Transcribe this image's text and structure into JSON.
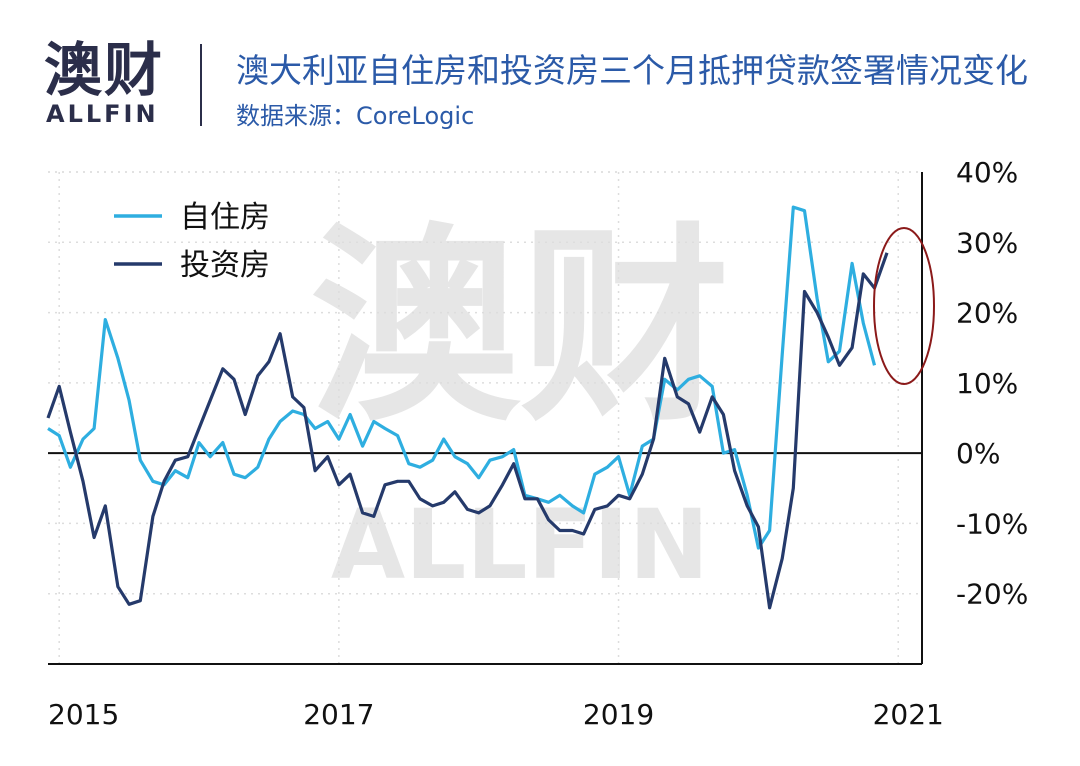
{
  "header": {
    "logo_cn": "澳财",
    "logo_en": "ALLFIN",
    "title": "澳大利亚自住房和投资房三个月抵押贷款签署情况变化",
    "source": "数据来源：CoreLogic"
  },
  "watermark": {
    "cn": "澳财",
    "en": "ALLFIN"
  },
  "colors": {
    "owner": "#2eaee0",
    "investor": "#253a6b",
    "circle": "#8b1a1a"
  },
  "chart_data": {
    "type": "line",
    "title": "澳大利亚自住房和投资房三个月抵押贷款签署情况变化",
    "xlabel": "",
    "ylabel": "",
    "xlim": [
      2014.92,
      2021.17
    ],
    "ylim": [
      -30,
      40
    ],
    "x_ticks": [
      {
        "value": 2015,
        "label": "2015"
      },
      {
        "value": 2017,
        "label": "2017"
      },
      {
        "value": 2019,
        "label": "2019"
      },
      {
        "value": 2021,
        "label": "2021"
      }
    ],
    "y_ticks": [
      {
        "value": 40,
        "label": "40%"
      },
      {
        "value": 30,
        "label": "30%"
      },
      {
        "value": 20,
        "label": "20%"
      },
      {
        "value": 10,
        "label": "10%"
      },
      {
        "value": 0,
        "label": "0%"
      },
      {
        "value": -10,
        "label": "-10%"
      },
      {
        "value": -20,
        "label": "-20%"
      }
    ],
    "grid": true,
    "legend": "top-left",
    "series": [
      {
        "name": "自住房",
        "color_key": "owner",
        "x": [
          2014.92,
          2015.0,
          2015.08,
          2015.17,
          2015.25,
          2015.33,
          2015.42,
          2015.5,
          2015.58,
          2015.67,
          2015.75,
          2015.83,
          2015.92,
          2016.0,
          2016.08,
          2016.17,
          2016.25,
          2016.33,
          2016.42,
          2016.5,
          2016.58,
          2016.67,
          2016.75,
          2016.83,
          2016.92,
          2017.0,
          2017.08,
          2017.17,
          2017.25,
          2017.33,
          2017.42,
          2017.5,
          2017.58,
          2017.67,
          2017.75,
          2017.83,
          2017.92,
          2018.0,
          2018.08,
          2018.17,
          2018.25,
          2018.33,
          2018.42,
          2018.5,
          2018.58,
          2018.67,
          2018.75,
          2018.83,
          2018.92,
          2019.0,
          2019.08,
          2019.17,
          2019.25,
          2019.33,
          2019.42,
          2019.5,
          2019.58,
          2019.67,
          2019.75,
          2019.83,
          2019.92,
          2020.0,
          2020.08,
          2020.17,
          2020.25,
          2020.33,
          2020.42,
          2020.5,
          2020.58,
          2020.67,
          2020.75,
          2020.83,
          2020.92,
          2021.0
        ],
        "values": [
          3.5,
          2.5,
          -2,
          2,
          3.5,
          19,
          13.5,
          7.5,
          -1,
          -4,
          -4.5,
          -2.5,
          -3.5,
          1.5,
          -0.5,
          1.5,
          -3,
          -3.5,
          -2,
          2,
          4.5,
          6,
          5.5,
          3.5,
          4.5,
          2,
          5.5,
          1,
          4.5,
          3.5,
          2.5,
          -1.5,
          -2,
          -1,
          2,
          -0.5,
          -1.5,
          -3.5,
          -1,
          -0.5,
          0.5,
          -6,
          -6.5,
          -7,
          -6,
          -7.5,
          -8.5,
          -3,
          -2,
          -0.5,
          -6,
          1,
          2,
          10.5,
          9,
          10.5,
          11,
          9.5,
          0,
          0.5,
          -6,
          -13.5,
          -11,
          14,
          35,
          34.5,
          22,
          13,
          14.5,
          27,
          18.5,
          12.5,
          null,
          null
        ]
      },
      {
        "name": "投资房",
        "color_key": "investor",
        "x": [
          2014.92,
          2015.0,
          2015.08,
          2015.17,
          2015.25,
          2015.33,
          2015.42,
          2015.5,
          2015.58,
          2015.67,
          2015.75,
          2015.83,
          2015.92,
          2016.0,
          2016.08,
          2016.17,
          2016.25,
          2016.33,
          2016.42,
          2016.5,
          2016.58,
          2016.67,
          2016.75,
          2016.83,
          2016.92,
          2017.0,
          2017.08,
          2017.17,
          2017.25,
          2017.33,
          2017.42,
          2017.5,
          2017.58,
          2017.67,
          2017.75,
          2017.83,
          2017.92,
          2018.0,
          2018.08,
          2018.17,
          2018.25,
          2018.33,
          2018.42,
          2018.5,
          2018.58,
          2018.67,
          2018.75,
          2018.83,
          2018.92,
          2019.0,
          2019.08,
          2019.17,
          2019.25,
          2019.33,
          2019.42,
          2019.5,
          2019.58,
          2019.67,
          2019.75,
          2019.83,
          2019.92,
          2020.0,
          2020.08,
          2020.17,
          2020.25,
          2020.33,
          2020.42,
          2020.5,
          2020.58,
          2020.67,
          2020.75,
          2020.83,
          2020.92,
          2021.0
        ],
        "values": [
          5,
          9.5,
          3,
          -4,
          -12,
          -7.5,
          -19,
          -21.5,
          -21,
          -9,
          -4,
          -1,
          -0.5,
          3.5,
          7.5,
          12,
          10.5,
          5.5,
          11,
          13,
          17,
          8,
          6.5,
          -2.5,
          -0.5,
          -4.5,
          -3,
          -8.5,
          -9,
          -4.5,
          -4,
          -4,
          -6.5,
          -7.5,
          -7,
          -5.5,
          -8,
          -8.5,
          -7.5,
          -4.5,
          -1.5,
          -6.5,
          -6.5,
          -9.5,
          -11,
          -11,
          -11.5,
          -8,
          -7.5,
          -6,
          -6.5,
          -3,
          2,
          13.5,
          8,
          7,
          3,
          8,
          5.5,
          -2.5,
          -7.5,
          -10.5,
          -22,
          -15,
          -5,
          23,
          20,
          16.5,
          12.5,
          15,
          25.5,
          23.5,
          28.5,
          null
        ]
      }
    ]
  }
}
